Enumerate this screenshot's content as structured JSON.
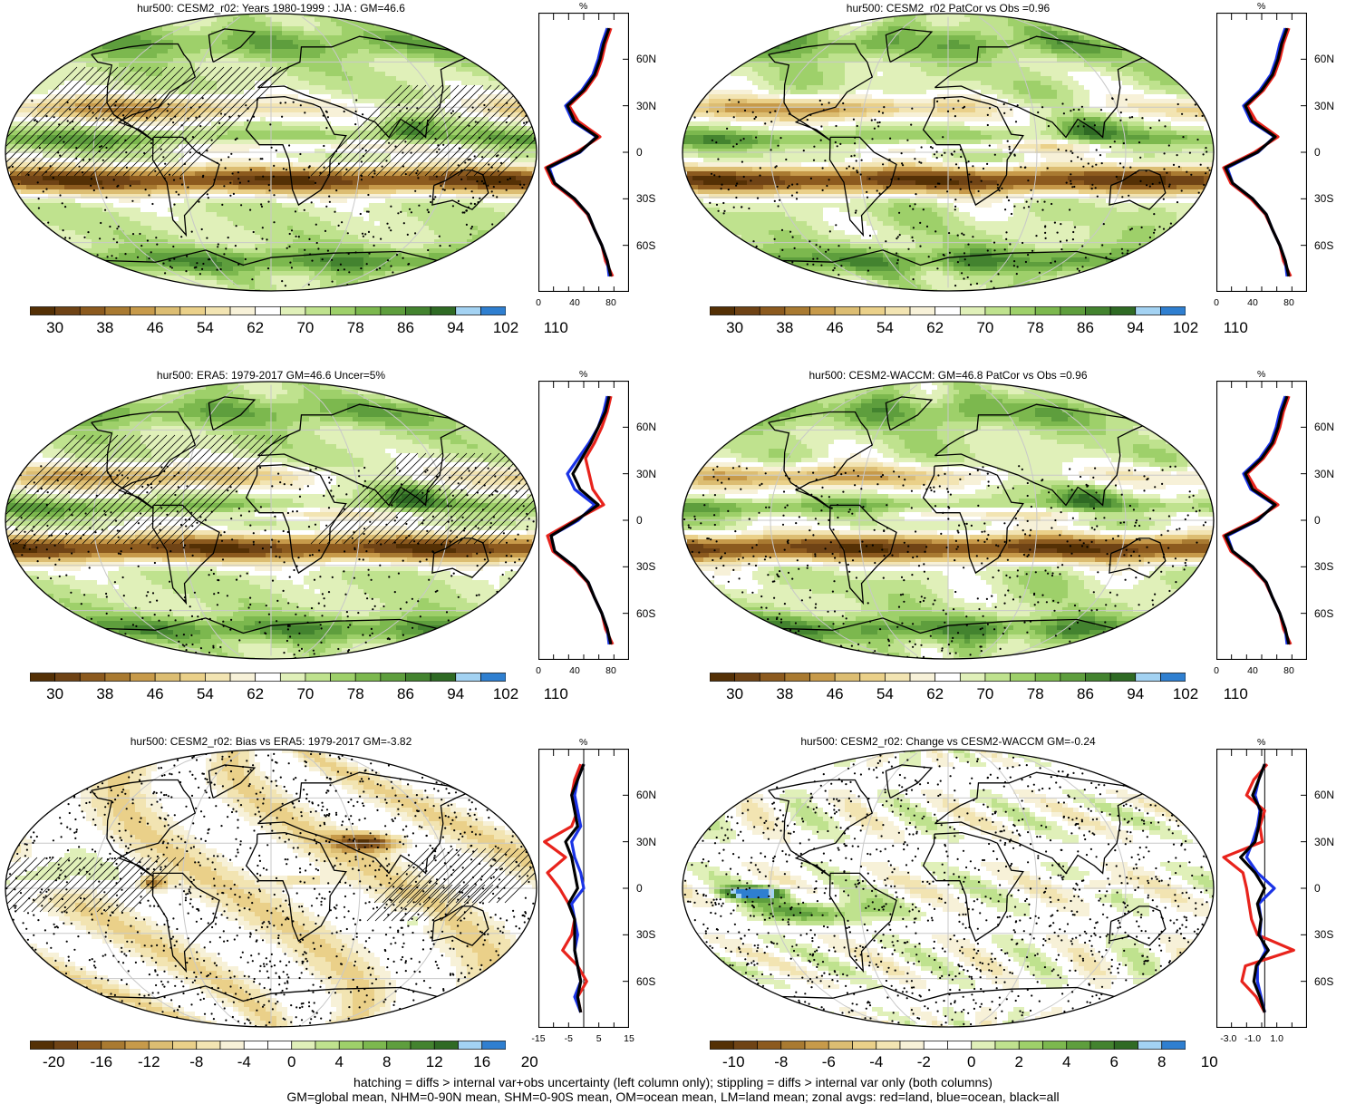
{
  "palettes": {
    "abs": [
      "#543005",
      "#6f4315",
      "#8c5a1e",
      "#a97a31",
      "#c79a4a",
      "#dcbd72",
      "#ead089",
      "#f2e4b2",
      "#f7f1d8",
      "#ffffff",
      "#e0f0b9",
      "#bfe28e",
      "#9ed06a",
      "#7cb84e",
      "#5e9e3d",
      "#43832f",
      "#2f6a24",
      "#a3d2f2",
      "#2f7fd0"
    ],
    "diff20": [
      "#543005",
      "#6f4315",
      "#8c5a1e",
      "#a97a31",
      "#c79a4a",
      "#dcbd72",
      "#ead089",
      "#f2e4b2",
      "#f7f1d8",
      "#ffffff",
      "#ffffff",
      "#e0f0b9",
      "#bfe28e",
      "#9ed06a",
      "#7cb84e",
      "#5e9e3d",
      "#43832f",
      "#2f6a24",
      "#a3d2f2",
      "#2f7fd0"
    ],
    "diff10": [
      "#543005",
      "#6f4315",
      "#8c5a1e",
      "#a97a31",
      "#c79a4a",
      "#dcbd72",
      "#ead089",
      "#f2e4b2",
      "#f7f1d8",
      "#ffffff",
      "#ffffff",
      "#e0f0b9",
      "#bfe28e",
      "#9ed06a",
      "#7cb84e",
      "#5e9e3d",
      "#43832f",
      "#2f6a24",
      "#a3d2f2",
      "#2f7fd0"
    ]
  },
  "colors": {
    "land": "#e8231c",
    "ocean": "#1a33e6",
    "all": "#000000"
  },
  "panels": [
    {
      "title": "hur500: CESM2_r02: Years 1980-1999 : JJA : GM=46.6",
      "palette": "abs",
      "cbar_labels": [
        "30",
        "38",
        "46",
        "54",
        "62",
        "70",
        "78",
        "86",
        "94",
        "102",
        "110"
      ],
      "cbar_label_start": 1,
      "xticks": [
        "0",
        "40",
        "80"
      ],
      "xmin": 0,
      "xmax": 100,
      "xtickvals": [
        0,
        40,
        80
      ],
      "yticks": [
        "60N",
        "30N",
        "0",
        "30S",
        "60S"
      ],
      "mode": "abs",
      "hatch": true,
      "variant": 0
    },
    {
      "title": "hur500: CESM2_r02 PatCor vs Obs =0.96",
      "palette": "abs",
      "cbar_labels": [
        "30",
        "38",
        "46",
        "54",
        "62",
        "70",
        "78",
        "86",
        "94",
        "102",
        "110"
      ],
      "cbar_label_start": 1,
      "xticks": [
        "0",
        "40",
        "80"
      ],
      "xmin": 0,
      "xmax": 100,
      "xtickvals": [
        0,
        40,
        80
      ],
      "yticks": [
        "60N",
        "30N",
        "0",
        "30S",
        "60S"
      ],
      "mode": "abs",
      "hatch": false,
      "variant": 1
    },
    {
      "title": "hur500: ERA5: 1979-2017 GM=46.6 Uncer=5%",
      "palette": "abs",
      "cbar_labels": [
        "30",
        "38",
        "46",
        "54",
        "62",
        "70",
        "78",
        "86",
        "94",
        "102",
        "110"
      ],
      "cbar_label_start": 1,
      "xticks": [
        "0",
        "40",
        "80"
      ],
      "xmin": 0,
      "xmax": 100,
      "xtickvals": [
        0,
        40,
        80
      ],
      "yticks": [
        "60N",
        "30N",
        "0",
        "30S",
        "60S"
      ],
      "mode": "abs",
      "hatch": true,
      "variant": 2
    },
    {
      "title": "hur500: CESM2-WACCM: GM=46.8 PatCor vs Obs =0.96",
      "palette": "abs",
      "cbar_labels": [
        "30",
        "38",
        "46",
        "54",
        "62",
        "70",
        "78",
        "86",
        "94",
        "102",
        "110"
      ],
      "cbar_label_start": 1,
      "xticks": [
        "0",
        "40",
        "80"
      ],
      "xmin": 0,
      "xmax": 100,
      "xtickvals": [
        0,
        40,
        80
      ],
      "yticks": [
        "60N",
        "30N",
        "0",
        "30S",
        "60S"
      ],
      "mode": "abs",
      "hatch": false,
      "variant": 3
    },
    {
      "title": "hur500: CESM2_r02: Bias vs ERA5: 1979-2017 GM=-3.82",
      "palette": "diff20",
      "cbar_labels": [
        "-20",
        "-16",
        "-12",
        "-8",
        "-4",
        "0",
        "4",
        "8",
        "12",
        "16",
        "20"
      ],
      "cbar_label_start": 1,
      "xticks": [
        "-15",
        "-5",
        "5",
        "15"
      ],
      "xmin": -15,
      "xmax": 15,
      "xtickvals": [
        -15,
        -5,
        5,
        15
      ],
      "yticks": [
        "60N",
        "30N",
        "0",
        "30S",
        "60S"
      ],
      "mode": "bias",
      "hatch": true,
      "variant": 4
    },
    {
      "title": "hur500: CESM2_r02: Change vs CESM2-WACCM GM=-0.24",
      "palette": "diff10",
      "cbar_labels": [
        "-10",
        "-8",
        "-6",
        "-4",
        "-2",
        "0",
        "2",
        "4",
        "6",
        "8",
        "10"
      ],
      "cbar_label_start": 1,
      "xticks": [
        "-3.0",
        "-1.0",
        "1.0"
      ],
      "xmin": -4,
      "xmax": 3.5,
      "xtickvals": [
        -3,
        -1,
        1
      ],
      "yticks": [
        "60N",
        "30N",
        "0",
        "30S",
        "60S"
      ],
      "mode": "change",
      "hatch": false,
      "variant": 5
    }
  ],
  "zonal_unit": "%",
  "footer": {
    "line1": "hatching = diffs > internal var+obs uncertainty (left column only); stippling = diffs > internal var only (both columns)",
    "line2": "GM=global mean, NHM=0-90N mean, SHM=0-90S mean, OM=ocean mean, LM=land mean; zonal avgs: red=land, blue=ocean, black=all"
  },
  "chart_data": [
    {
      "type": "heatmap",
      "title": "hur500: CESM2_r02: Years 1980-1999 : JJA : GM=46.6",
      "colorbar": [
        "30",
        "38",
        "46",
        "54",
        "62",
        "70",
        "78",
        "86",
        "94",
        "102",
        "110"
      ],
      "zonal_mean": {
        "xlabel": "%",
        "xticks": [
          "0",
          "40",
          "80"
        ],
        "lat": [
          80,
          70,
          60,
          50,
          40,
          30,
          20,
          10,
          0,
          -10,
          -20,
          -30,
          -40,
          -50,
          -60,
          -70,
          -80
        ],
        "all": [
          78,
          72,
          68,
          62,
          50,
          32,
          40,
          65,
          45,
          10,
          18,
          40,
          55,
          62,
          70,
          76,
          80
        ],
        "land": [
          80,
          74,
          70,
          64,
          52,
          34,
          44,
          68,
          42,
          8,
          16,
          38,
          54,
          62,
          70,
          74,
          82
        ],
        "ocean": [
          76,
          70,
          66,
          60,
          48,
          30,
          38,
          64,
          46,
          12,
          18,
          40,
          55,
          62,
          70,
          76,
          78
        ]
      }
    },
    {
      "type": "heatmap",
      "title": "hur500: CESM2_r02 PatCor vs Obs =0.96",
      "colorbar": [
        "30",
        "38",
        "46",
        "54",
        "62",
        "70",
        "78",
        "86",
        "94",
        "102",
        "110"
      ],
      "zonal_mean": {
        "xlabel": "%",
        "xticks": [
          "0",
          "40",
          "80"
        ],
        "lat": [
          80,
          70,
          60,
          50,
          40,
          30,
          20,
          10,
          0,
          -10,
          -20,
          -30,
          -40,
          -50,
          -60,
          -70,
          -80
        ],
        "all": [
          78,
          72,
          68,
          62,
          50,
          32,
          40,
          65,
          45,
          10,
          18,
          40,
          55,
          62,
          70,
          76,
          80
        ],
        "land": [
          80,
          74,
          70,
          64,
          52,
          34,
          44,
          68,
          42,
          8,
          16,
          38,
          54,
          62,
          70,
          74,
          82
        ],
        "ocean": [
          76,
          70,
          66,
          60,
          48,
          30,
          38,
          64,
          46,
          12,
          18,
          40,
          55,
          62,
          70,
          76,
          78
        ]
      }
    },
    {
      "type": "heatmap",
      "title": "hur500: ERA5: 1979-2017 GM=46.6 Uncer=5%",
      "colorbar": [
        "30",
        "38",
        "46",
        "54",
        "62",
        "70",
        "78",
        "86",
        "94",
        "102",
        "110"
      ],
      "zonal_mean": {
        "xlabel": "%",
        "xticks": [
          "0",
          "40",
          "80"
        ],
        "lat": [
          80,
          70,
          60,
          50,
          40,
          30,
          20,
          10,
          0,
          -10,
          -20,
          -30,
          -40,
          -50,
          -60,
          -70,
          -80
        ],
        "all": [
          78,
          74,
          66,
          58,
          48,
          38,
          46,
          66,
          42,
          14,
          18,
          40,
          55,
          62,
          70,
          76,
          80
        ],
        "land": [
          80,
          76,
          70,
          62,
          52,
          56,
          60,
          72,
          40,
          10,
          16,
          38,
          54,
          62,
          70,
          74,
          82
        ],
        "ocean": [
          76,
          72,
          66,
          56,
          44,
          32,
          40,
          62,
          44,
          14,
          18,
          40,
          55,
          62,
          70,
          76,
          78
        ]
      }
    },
    {
      "type": "heatmap",
      "title": "hur500: CESM2-WACCM: GM=46.8 PatCor vs Obs =0.96",
      "colorbar": [
        "30",
        "38",
        "46",
        "54",
        "62",
        "70",
        "78",
        "86",
        "94",
        "102",
        "110"
      ],
      "zonal_mean": {
        "xlabel": "%",
        "xticks": [
          "0",
          "40",
          "80"
        ],
        "lat": [
          80,
          70,
          60,
          50,
          40,
          30,
          20,
          10,
          0,
          -10,
          -20,
          -30,
          -40,
          -50,
          -60,
          -70,
          -80
        ],
        "all": [
          78,
          72,
          68,
          62,
          50,
          32,
          40,
          65,
          45,
          10,
          18,
          40,
          55,
          62,
          70,
          76,
          80
        ],
        "land": [
          80,
          74,
          70,
          64,
          52,
          34,
          44,
          68,
          42,
          8,
          16,
          38,
          54,
          62,
          70,
          74,
          82
        ],
        "ocean": [
          76,
          70,
          66,
          60,
          48,
          30,
          38,
          64,
          46,
          12,
          18,
          40,
          55,
          62,
          70,
          76,
          78
        ]
      }
    },
    {
      "type": "heatmap",
      "title": "hur500: CESM2_r02: Bias vs ERA5: 1979-2017 GM=-3.82",
      "colorbar": [
        "-20",
        "-16",
        "-12",
        "-8",
        "-4",
        "0",
        "4",
        "8",
        "12",
        "16",
        "20"
      ],
      "zonal_mean": {
        "xlabel": "%",
        "xticks": [
          "-15",
          "-5",
          "5",
          "15"
        ],
        "lat": [
          80,
          70,
          60,
          50,
          40,
          30,
          20,
          10,
          0,
          -10,
          -20,
          -30,
          -40,
          -50,
          -60,
          -70,
          -80
        ],
        "all": [
          0,
          -2,
          -4,
          -3,
          -2,
          -6,
          -4,
          -3,
          -2,
          -5,
          -3,
          -3,
          -3,
          -2,
          -1,
          -2,
          -1
        ],
        "land": [
          -1,
          -3,
          -4,
          -2,
          -4,
          -13,
          -6,
          -12,
          -8,
          -5,
          -3,
          -4,
          -7,
          -2,
          1,
          -2,
          -1
        ],
        "ocean": [
          0,
          -2,
          -3,
          -2,
          -1,
          -4,
          -3,
          -1,
          0,
          -4,
          -3,
          -2,
          -3,
          -2,
          -1,
          -3,
          -1
        ]
      }
    },
    {
      "type": "heatmap",
      "title": "hur500: CESM2_r02: Change vs CESM2-WACCM GM=-0.24",
      "colorbar": [
        "-10",
        "-8",
        "-6",
        "-4",
        "-2",
        "0",
        "2",
        "4",
        "6",
        "8",
        "10"
      ],
      "zonal_mean": {
        "xlabel": "%",
        "xticks": [
          "-3.0",
          "-1.0",
          "1.0"
        ],
        "lat": [
          80,
          70,
          60,
          50,
          40,
          30,
          20,
          10,
          0,
          -10,
          -20,
          -30,
          -40,
          -50,
          -60,
          -70,
          -80
        ],
        "all": [
          0,
          -0.5,
          -1,
          -0.3,
          -0.5,
          -0.8,
          -2,
          -0.8,
          0,
          -0.6,
          -0.3,
          -0.5,
          0.3,
          -0.7,
          -0.9,
          -0.4,
          0
        ],
        "land": [
          0.2,
          -0.9,
          -1.5,
          0,
          -0.4,
          -0.2,
          -3.4,
          -1.8,
          -1.5,
          -1.3,
          -1.1,
          -0.6,
          2.4,
          -1.6,
          -1.9,
          -0.7,
          0
        ],
        "ocean": [
          0,
          -0.5,
          -0.8,
          -0.4,
          -0.6,
          -1.0,
          -1.5,
          -0.6,
          0.8,
          -0.5,
          -0.3,
          -0.4,
          0.1,
          -0.6,
          -0.6,
          -0.3,
          0
        ]
      }
    }
  ]
}
